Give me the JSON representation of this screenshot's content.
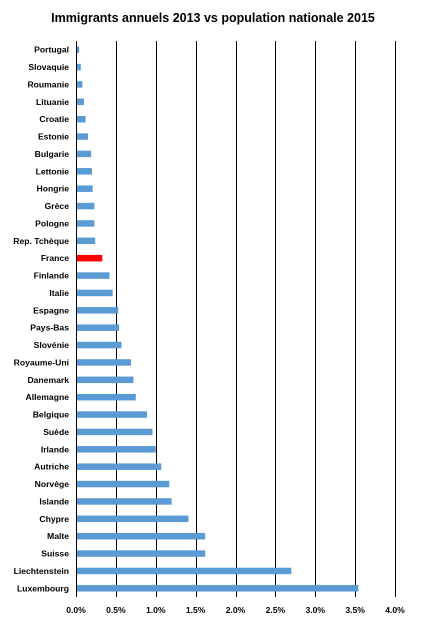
{
  "chart_data": {
    "type": "bar",
    "orientation": "horizontal",
    "title": "Immigrants annuels 2013 vs population nationale 2015",
    "xlabel": "",
    "ylabel": "",
    "xlim": [
      0,
      0.04
    ],
    "grid": "vertical",
    "bar_color": "#5B9BD5",
    "highlight_color": "#FF0000",
    "highlight_category": "France",
    "ticks": [
      {
        "value": 0.0,
        "label": "0.0%"
      },
      {
        "value": 0.005,
        "label": "0.5%"
      },
      {
        "value": 0.01,
        "label": "1.0%"
      },
      {
        "value": 0.015,
        "label": "1.5%"
      },
      {
        "value": 0.02,
        "label": "2.0%"
      },
      {
        "value": 0.025,
        "label": "2.5%"
      },
      {
        "value": 0.03,
        "label": "3.0%"
      },
      {
        "value": 0.035,
        "label": "3.5%"
      },
      {
        "value": 0.04,
        "label": "4.0%"
      }
    ],
    "categories": [
      "Portugal",
      "Slovaquie",
      "Roumanie",
      "Lituanie",
      "Croatie",
      "Estonie",
      "Bulgarie",
      "Lettonie",
      "Hongrie",
      "Grèce",
      "Pologne",
      "Rep. Tchèque",
      "France",
      "Finlande",
      "Italie",
      "Espagne",
      "Pays-Bas",
      "Slovénie",
      "Royaume-Uni",
      "Danemark",
      "Allemagne",
      "Belgique",
      "Suède",
      "Irlande",
      "Autriche",
      "Norvège",
      "Islande",
      "Chypre",
      "Malte",
      "Suisse",
      "Liechtenstein",
      "Luxembourg"
    ],
    "values": [
      0.0004,
      0.0006,
      0.0008,
      0.001,
      0.0012,
      0.0015,
      0.0019,
      0.002,
      0.0021,
      0.0023,
      0.0023,
      0.0024,
      0.0033,
      0.0042,
      0.0046,
      0.0053,
      0.0054,
      0.0057,
      0.0069,
      0.0072,
      0.0075,
      0.0089,
      0.0096,
      0.01,
      0.0107,
      0.0117,
      0.012,
      0.0141,
      0.0162,
      0.0162,
      0.027,
      0.0354
    ]
  }
}
